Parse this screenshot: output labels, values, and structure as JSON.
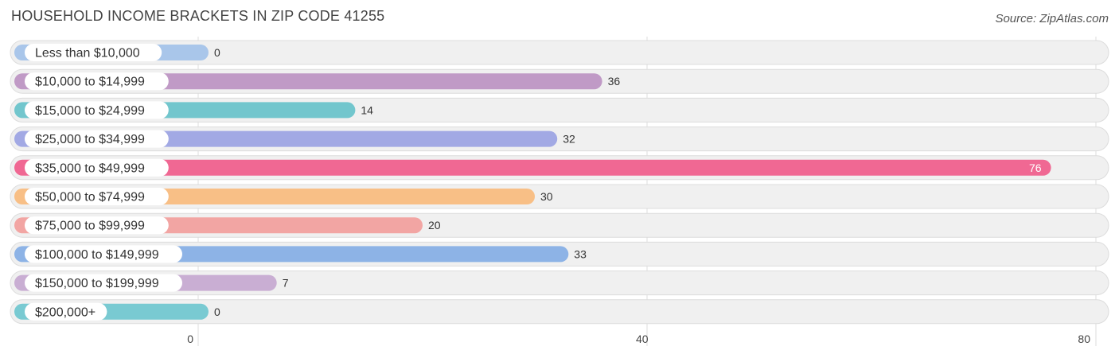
{
  "header": {
    "title": "HOUSEHOLD INCOME BRACKETS IN ZIP CODE 41255",
    "source": "Source: ZipAtlas.com"
  },
  "chart_data": {
    "type": "bar",
    "orientation": "horizontal",
    "title": "HOUSEHOLD INCOME BRACKETS IN ZIP CODE 41255",
    "xlabel": "",
    "ylabel": "",
    "xlim": [
      0,
      80
    ],
    "xticks": [
      0,
      40,
      80
    ],
    "grid": true,
    "categories": [
      "Less than $10,000",
      "$10,000 to $14,999",
      "$15,000 to $24,999",
      "$25,000 to $34,999",
      "$35,000 to $49,999",
      "$50,000 to $74,999",
      "$75,000 to $99,999",
      "$100,000 to $149,999",
      "$150,000 to $199,999",
      "$200,000+"
    ],
    "values": [
      0,
      36,
      14,
      32,
      76,
      30,
      20,
      33,
      7,
      0
    ],
    "colors": [
      "#a9c6ea",
      "#c09ac6",
      "#72c6cd",
      "#a2a9e4",
      "#f06893",
      "#f8bf86",
      "#f2a5a3",
      "#8db3e6",
      "#c9aed3",
      "#79cad2"
    ]
  }
}
